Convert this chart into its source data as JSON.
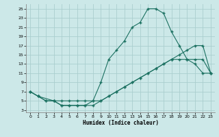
{
  "xlabel": "Humidex (Indice chaleur)",
  "bg_color": "#cce8e8",
  "grid_color": "#aacece",
  "line_color": "#1a7060",
  "xlim": [
    -0.5,
    23.5
  ],
  "ylim": [
    2.5,
    26
  ],
  "xticks": [
    0,
    1,
    2,
    3,
    4,
    5,
    6,
    7,
    8,
    9,
    10,
    11,
    12,
    13,
    14,
    15,
    16,
    17,
    18,
    19,
    20,
    21,
    22,
    23
  ],
  "yticks": [
    3,
    5,
    7,
    9,
    11,
    13,
    15,
    17,
    19,
    21,
    23,
    25
  ],
  "curve1_x": [
    0,
    1,
    2,
    3,
    4,
    5,
    6,
    7,
    8,
    9,
    10,
    11,
    12,
    13,
    14,
    15,
    16,
    17,
    18,
    19,
    20,
    21,
    22,
    23
  ],
  "curve1_y": [
    7,
    6,
    5,
    5,
    4,
    4,
    4,
    4,
    5,
    9,
    14,
    16,
    18,
    21,
    22,
    25,
    25,
    24,
    20,
    17,
    14,
    13,
    11,
    11
  ],
  "curve2_x": [
    0,
    1,
    2,
    3,
    4,
    5,
    6,
    7,
    8,
    9,
    10,
    11,
    12,
    13,
    14,
    15,
    16,
    17,
    18,
    19,
    20,
    21,
    22,
    23
  ],
  "curve2_y": [
    7,
    6,
    5,
    5,
    4,
    4,
    4,
    4,
    4,
    5,
    6,
    7,
    8,
    9,
    10,
    11,
    12,
    13,
    14,
    15,
    16,
    17,
    17,
    11
  ],
  "curve3_x": [
    0,
    1,
    3,
    4,
    5,
    6,
    7,
    8,
    9,
    10,
    11,
    12,
    13,
    14,
    15,
    16,
    17,
    18,
    19,
    20,
    21,
    22,
    23
  ],
  "curve3_y": [
    7,
    6,
    5,
    5,
    5,
    5,
    5,
    5,
    5,
    6,
    7,
    8,
    9,
    10,
    11,
    12,
    13,
    14,
    14,
    14,
    14,
    14,
    11
  ]
}
